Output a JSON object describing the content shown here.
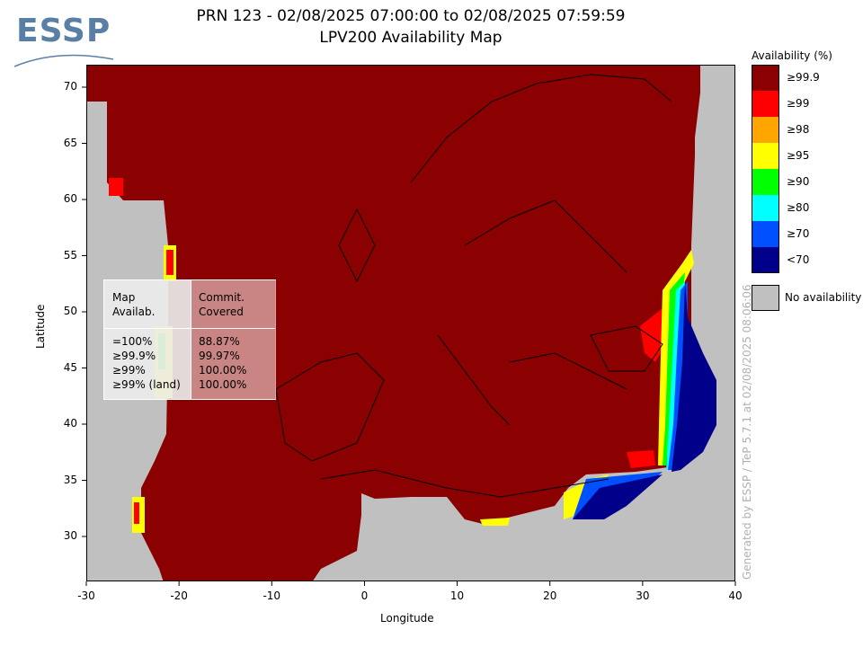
{
  "logo": {
    "text": "ESSP"
  },
  "title": {
    "line1": "PRN 123 - 02/08/2025 07:00:00 to 02/08/2025 07:59:59",
    "line2": "LPV200 Availability Map"
  },
  "axes": {
    "xlabel": "Longitude",
    "ylabel": "Latitude",
    "x_ticks": [
      "-30",
      "-20",
      "-10",
      "0",
      "10",
      "20",
      "30",
      "40"
    ],
    "y_ticks": [
      "70",
      "65",
      "60",
      "55",
      "50",
      "45",
      "40",
      "35",
      "30"
    ],
    "xlim": [
      -30,
      40
    ],
    "ylim": [
      26,
      72
    ]
  },
  "legend": {
    "title": "Availability (%)",
    "items": [
      {
        "label": "≥99.9",
        "color": "#8b0000"
      },
      {
        "label": "≥99",
        "color": "#ff0000"
      },
      {
        "label": "≥98",
        "color": "#ffa500"
      },
      {
        "label": "≥95",
        "color": "#ffff00"
      },
      {
        "label": "≥90",
        "color": "#00ff00"
      },
      {
        "label": "≥80",
        "color": "#00ffff"
      },
      {
        "label": "≥70",
        "color": "#0050ff"
      },
      {
        "label": "<70",
        "color": "#00008b"
      }
    ],
    "no_availability": {
      "label": "No availability",
      "color": "#c0c0c0"
    }
  },
  "stats_box": {
    "header_left": "Map\nAvailab.",
    "header_right": "Commit.\nCovered",
    "rows_left": "=100%\n≥99.9%\n≥99%\n≥99% (land)",
    "rows_right": "88.87%\n99.97%\n100.00%\n100.00%"
  },
  "watermark": "Generated by ESSP / TeP 5.7.1 at 02/08/2025 08:06:06",
  "colors": {
    "dark_red": "#8b0000",
    "gray": "#c0c0c0",
    "logo_blue": "#5a7fa6"
  }
}
